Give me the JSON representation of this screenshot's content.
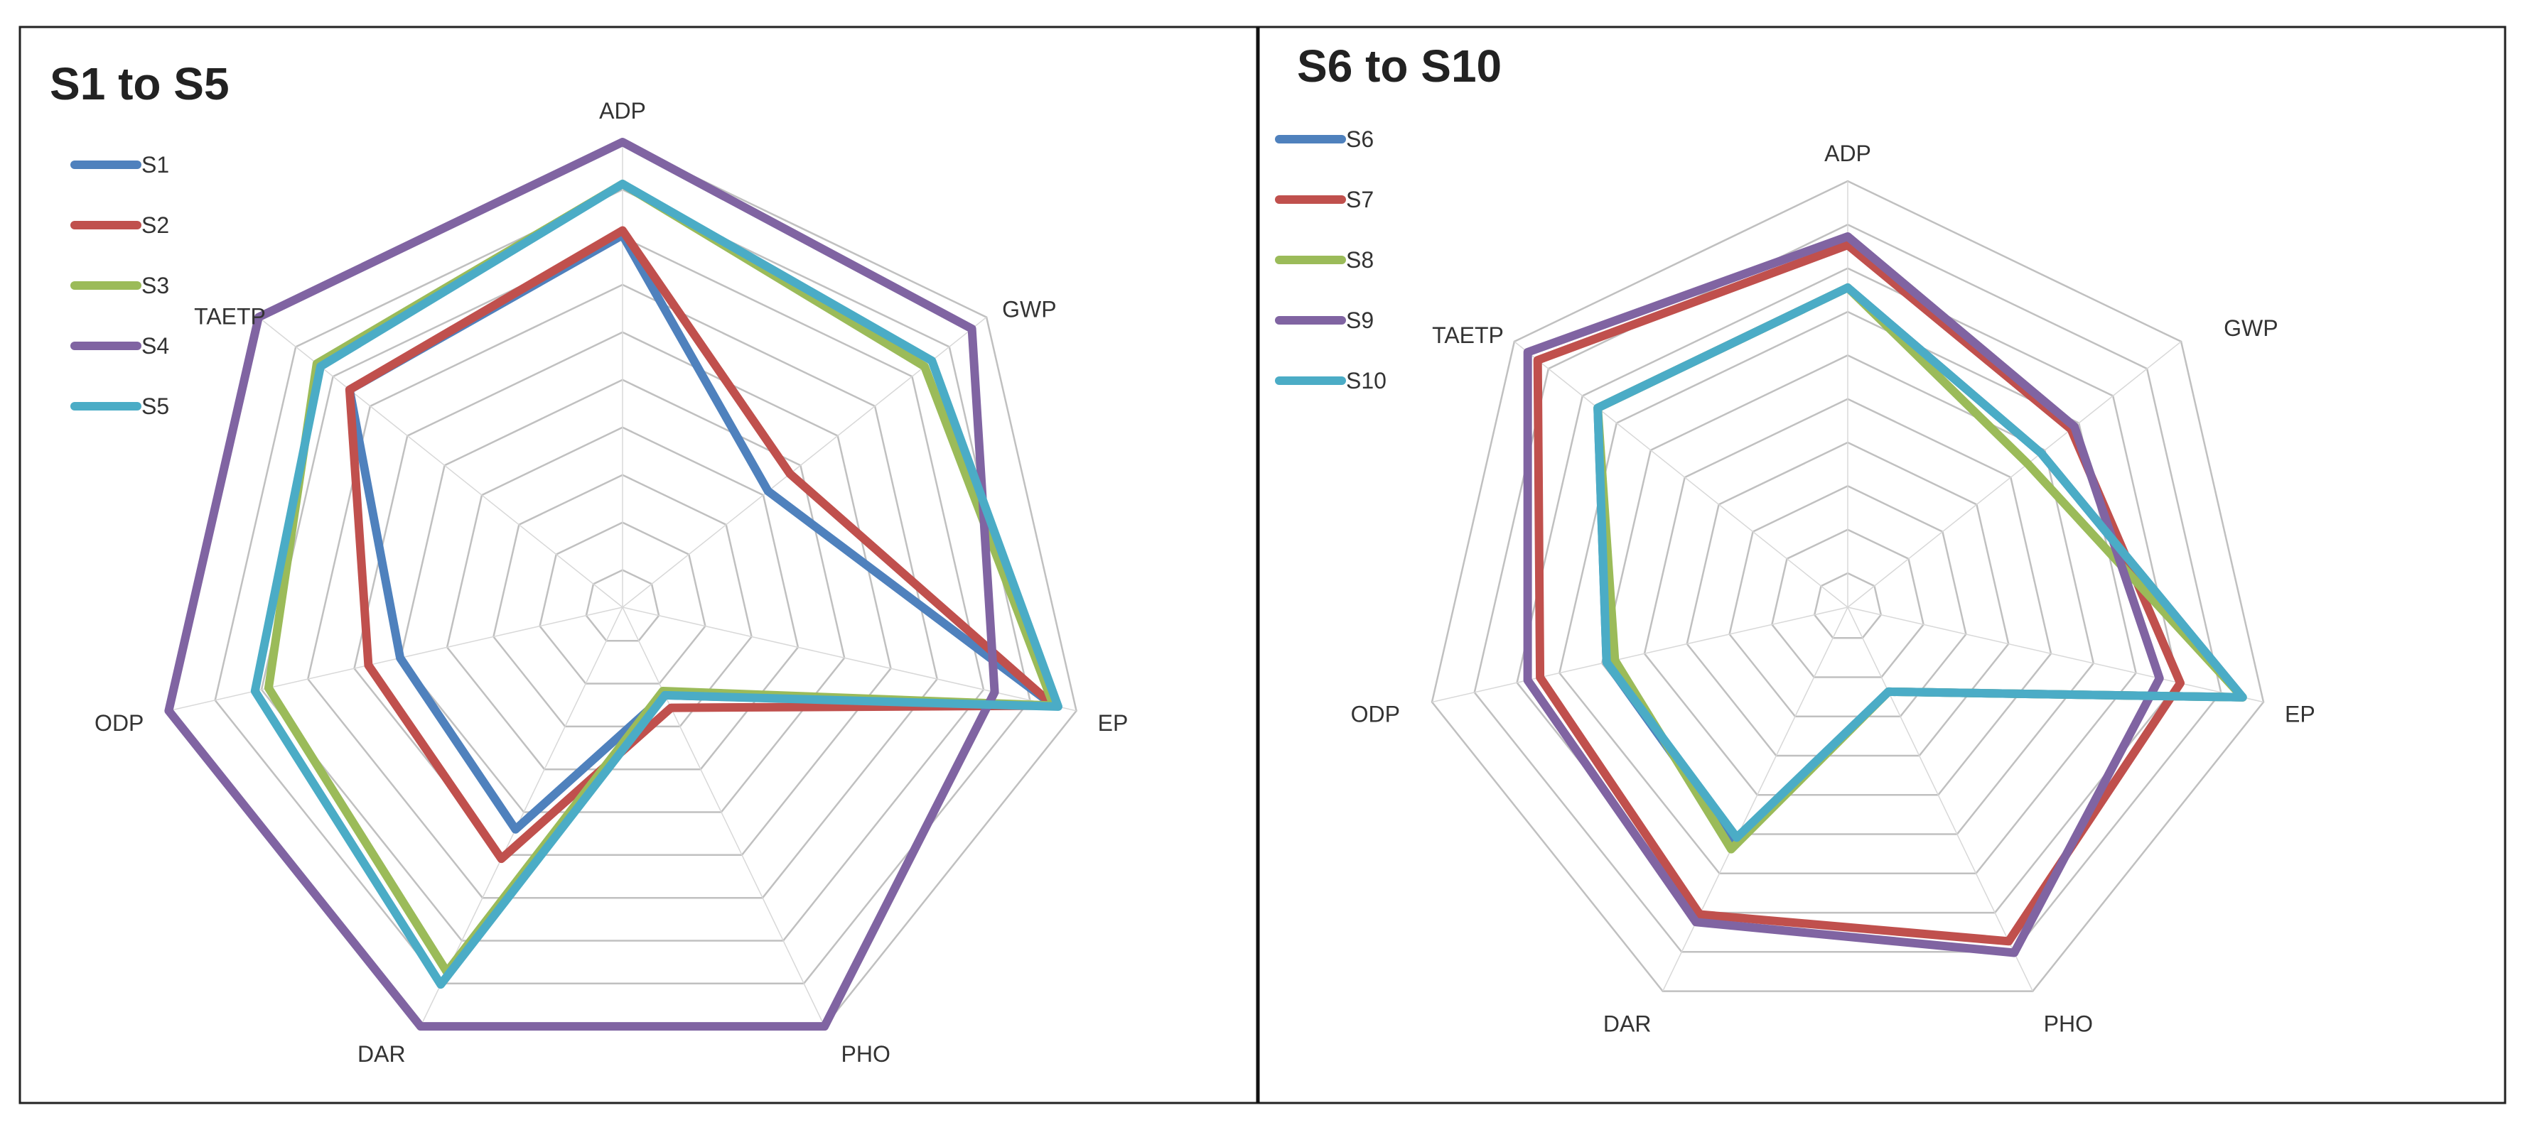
{
  "chart_data": [
    {
      "type": "radar",
      "title": "S1 to S5",
      "axes": [
        "ADP",
        "GWP",
        "EP",
        "PHO",
        "DAR",
        "ODP",
        "TAETP"
      ],
      "rlim": [
        0,
        10
      ],
      "grid": true,
      "legend_position": "top-left",
      "series": [
        {
          "name": "S1",
          "color": "#4F81BD",
          "values": [
            8.0,
            4.0,
            9.5,
            2.1,
            5.3,
            4.9,
            7.5
          ]
        },
        {
          "name": "S2",
          "color": "#C0504D",
          "values": [
            8.1,
            4.6,
            9.5,
            2.4,
            6.0,
            5.6,
            7.5
          ]
        },
        {
          "name": "S3",
          "color": "#9BBB59",
          "values": [
            9.1,
            8.3,
            9.5,
            2.0,
            8.7,
            7.8,
            8.4
          ]
        },
        {
          "name": "S4",
          "color": "#8064A2",
          "values": [
            10.0,
            9.6,
            8.2,
            10.0,
            10.0,
            10.0,
            10.0
          ]
        },
        {
          "name": "S5",
          "color": "#4BACC6",
          "values": [
            9.1,
            8.5,
            9.6,
            2.1,
            9.0,
            8.1,
            8.3
          ]
        }
      ]
    },
    {
      "type": "radar",
      "title": "S6 to S10",
      "axes": [
        "ADP",
        "GWP",
        "EP",
        "PHO",
        "DAR",
        "ODP",
        "TAETP"
      ],
      "rlim": [
        0,
        10
      ],
      "grid": true,
      "legend_position": "top-left",
      "series": [
        {
          "name": "S6",
          "color": "#4F81BD",
          "values": [
            7.5,
            5.8,
            9.5,
            2.2,
            6.1,
            5.8,
            7.5
          ]
        },
        {
          "name": "S7",
          "color": "#C0504D",
          "values": [
            8.5,
            6.7,
            8.0,
            8.7,
            8.0,
            7.4,
            9.3
          ]
        },
        {
          "name": "S8",
          "color": "#9BBB59",
          "values": [
            7.5,
            5.4,
            9.5,
            2.2,
            6.3,
            5.6,
            7.5
          ]
        },
        {
          "name": "S9",
          "color": "#8064A2",
          "values": [
            8.7,
            6.8,
            7.5,
            9.0,
            8.2,
            7.7,
            9.6
          ]
        },
        {
          "name": "S10",
          "color": "#4BACC6",
          "values": [
            7.5,
            5.8,
            9.5,
            2.2,
            6.0,
            5.8,
            7.5
          ]
        }
      ]
    }
  ]
}
